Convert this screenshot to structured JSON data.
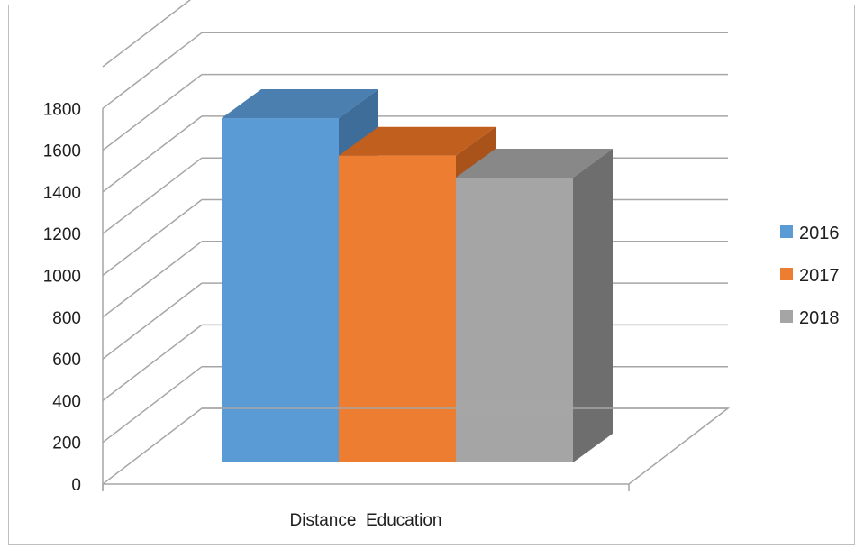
{
  "chart_data": {
    "type": "bar",
    "three_d": true,
    "categories": [
      "Distance  Education"
    ],
    "series": [
      {
        "name": "2016",
        "values": [
          1650
        ],
        "color": "#5b9bd5",
        "top_color": "#4a7fb0",
        "side_color": "#3e6d99"
      },
      {
        "name": "2017",
        "values": [
          1470
        ],
        "color": "#ed7d31",
        "top_color": "#c15f1f",
        "side_color": "#a9521a"
      },
      {
        "name": "2018",
        "values": [
          1365
        ],
        "color": "#a5a5a5",
        "top_color": "#888888",
        "side_color": "#6e6e6e"
      }
    ],
    "y_ticks": [
      "0",
      "200",
      "400",
      "600",
      "800",
      "1000",
      "1200",
      "1400",
      "1600",
      "1800"
    ],
    "ylim": [
      0,
      1800
    ],
    "grid": true,
    "gridline_color": "#a6a6a6",
    "legend_position": "right"
  }
}
